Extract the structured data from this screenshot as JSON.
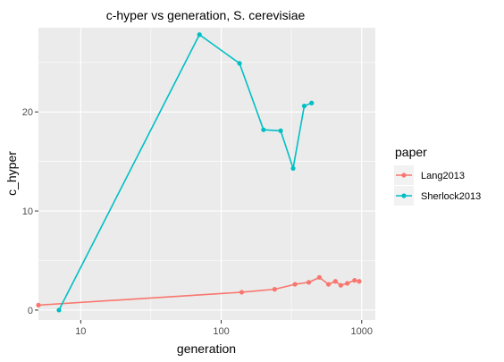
{
  "chart_data": {
    "type": "line",
    "title": "c-hyper vs generation, S. cerevisiae",
    "xlabel": "generation",
    "ylabel": "c_hyper",
    "x_scale": "log10",
    "xlim": [
      5,
      1250
    ],
    "ylim": [
      -1,
      28.5
    ],
    "x_ticks": [
      10,
      100,
      1000
    ],
    "x_tick_labels": [
      "10",
      "100",
      "1000"
    ],
    "x_minor_ticks": [
      31.6,
      316
    ],
    "y_ticks": [
      0,
      10,
      20
    ],
    "y_tick_labels": [
      "0",
      "10",
      "20"
    ],
    "y_minor_ticks": [
      5,
      15,
      25
    ],
    "legend": {
      "title": "paper",
      "position": "right"
    },
    "series": [
      {
        "name": "Lang2013",
        "color": "#F8766D",
        "x": [
          5,
          140,
          240,
          335,
          420,
          500,
          580,
          650,
          710,
          790,
          890,
          960
        ],
        "y": [
          0.5,
          1.8,
          2.1,
          2.6,
          2.8,
          3.3,
          2.6,
          2.9,
          2.5,
          2.7,
          3.0,
          2.9
        ]
      },
      {
        "name": "Sherlock2013",
        "color": "#00BFC4",
        "x": [
          7,
          70,
          135,
          200,
          265,
          325,
          390,
          440
        ],
        "y": [
          0.0,
          27.8,
          24.9,
          18.2,
          18.1,
          14.3,
          20.6,
          20.9
        ]
      }
    ]
  }
}
